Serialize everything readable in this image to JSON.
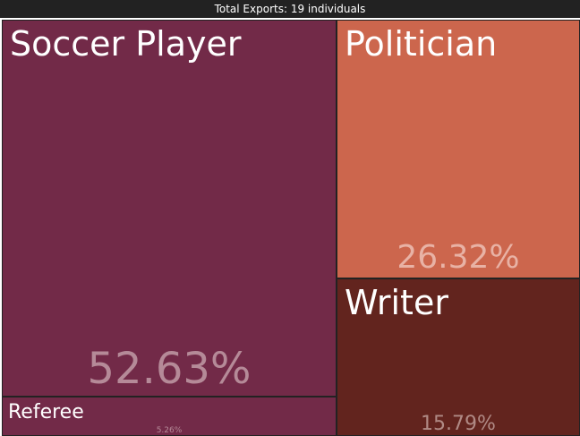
{
  "header": {
    "title": "Total Exports: 19 individuals"
  },
  "chart_data": {
    "type": "treemap",
    "items": [
      {
        "name": "Soccer Player",
        "share_label": "52.63%",
        "share": 52.63,
        "color": "#722a48"
      },
      {
        "name": "Politician",
        "share_label": "26.32%",
        "share": 26.32,
        "color": "#cc664d"
      },
      {
        "name": "Writer",
        "share_label": "15.79%",
        "share": 15.79,
        "color": "#62241e"
      },
      {
        "name": "Referee",
        "share_label": "5.26%",
        "share": 5.26,
        "color": "#722a48"
      }
    ]
  }
}
